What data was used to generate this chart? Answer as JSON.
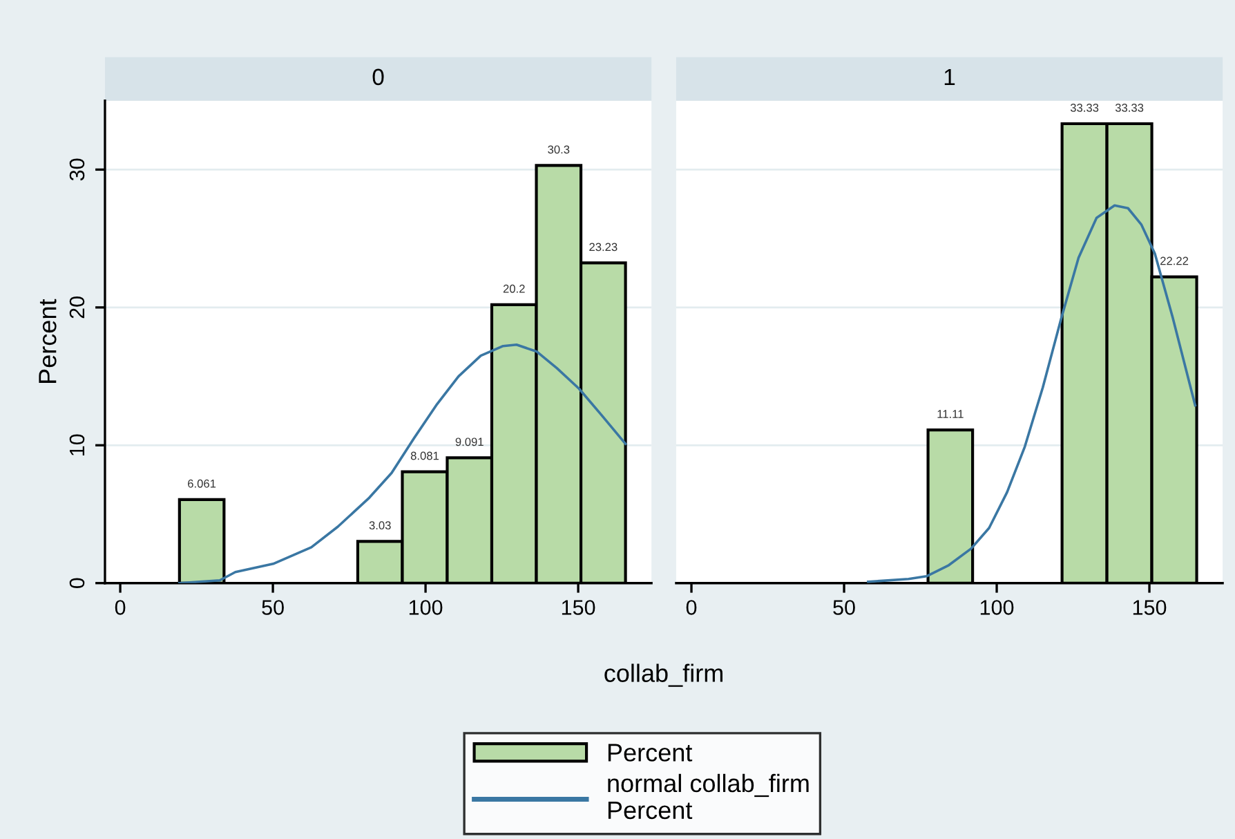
{
  "chart_data": [
    {
      "type": "histogram",
      "title": "0",
      "xlabel": "collab_firm",
      "ylabel": "Percent",
      "xlim": [
        -5,
        174
      ],
      "xticks": [
        0,
        50,
        100,
        150
      ],
      "ylim": [
        0,
        35
      ],
      "yticks": [
        0,
        10,
        20,
        30
      ],
      "grid": "y",
      "legend": "bottom",
      "series": [
        {
          "name": "Percent",
          "color": "#b8dba7",
          "bins": [
            19.4,
            34.0,
            48.6,
            63.2,
            77.8,
            92.4,
            107.1,
            121.7,
            136.3,
            150.9,
            165.5
          ],
          "values": [
            6.061,
            0,
            0,
            0,
            3.03,
            8.081,
            9.091,
            20.2,
            30.3,
            23.23
          ],
          "value_labels": [
            "6.061",
            null,
            null,
            null,
            "3.03",
            "8.081",
            "9.091",
            "20.2",
            "30.3",
            "23.23"
          ]
        },
        {
          "name": "normal collab_firm Percent",
          "type": "line",
          "color": "#3a77a3",
          "x": [
            19.4,
            32.6,
            37.7,
            50.1,
            62.6,
            71.3,
            81.6,
            88.9,
            96.2,
            103.5,
            110.8,
            118.1,
            125.4,
            129.8,
            136.4,
            143.0,
            150.3,
            157.6,
            165.5
          ],
          "values": [
            0,
            0.2,
            0.8,
            1.4,
            2.6,
            4.1,
            6.2,
            8.0,
            10.5,
            12.9,
            15.0,
            16.5,
            17.2,
            17.3,
            16.8,
            15.6,
            14.1,
            12.2,
            10.1
          ]
        }
      ]
    },
    {
      "type": "histogram",
      "title": "1",
      "xlim": [
        -5,
        174
      ],
      "xticks": [
        0,
        50,
        100,
        150
      ],
      "ylim": [
        0,
        35
      ],
      "yticks": [
        0,
        10,
        20,
        30
      ],
      "grid": "y",
      "tick_labels": "x",
      "series": [
        {
          "color": "#b8dba7",
          "bins": [
            77.5,
            92.1,
            106.7,
            121.4,
            136.1,
            150.8,
            165.5
          ],
          "values": [
            11.11,
            0,
            0,
            33.33,
            33.33,
            22.22
          ],
          "value_labels": [
            "11.11",
            null,
            null,
            "33.33",
            "33.33",
            "22.22"
          ]
        },
        {
          "type": "line",
          "color": "#3a77a3",
          "x": [
            57.9,
            71.1,
            77.0,
            84.3,
            91.6,
            97.5,
            103.4,
            109.2,
            115.1,
            121.0,
            126.8,
            132.7,
            138.6,
            143.0,
            147.4,
            151.8,
            157.6,
            165.0
          ],
          "values": [
            0.1,
            0.3,
            0.5,
            1.3,
            2.5,
            4.0,
            6.6,
            9.9,
            14.2,
            19.1,
            23.6,
            26.5,
            27.4,
            27.2,
            26.0,
            23.9,
            19.3,
            12.9
          ]
        }
      ]
    }
  ]
}
